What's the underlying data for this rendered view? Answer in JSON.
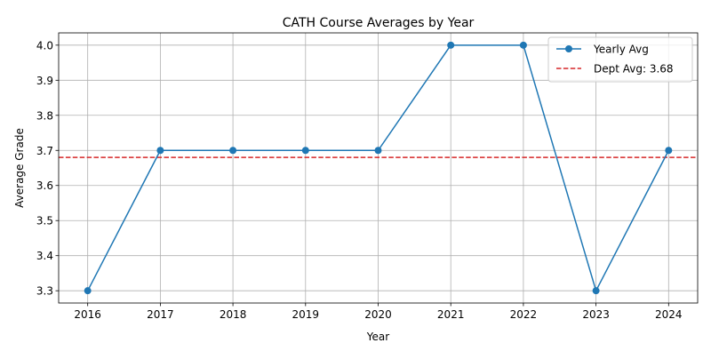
{
  "chart_data": {
    "type": "line",
    "title": "CATH Course Averages by Year",
    "xlabel": "Year",
    "ylabel": "Average Grade",
    "x": [
      2016,
      2017,
      2018,
      2019,
      2020,
      2021,
      2022,
      2023,
      2024
    ],
    "xlim": [
      2015.6,
      2024.4
    ],
    "ylim": [
      3.265,
      4.035
    ],
    "yticks": [
      3.3,
      3.4,
      3.5,
      3.6,
      3.7,
      3.8,
      3.9,
      4.0
    ],
    "ytick_labels": [
      "3.3",
      "3.4",
      "3.5",
      "3.6",
      "3.7",
      "3.8",
      "3.9",
      "4.0"
    ],
    "grid": true,
    "legend_position": "top-right",
    "series": [
      {
        "name": "Yearly Avg",
        "color": "#1f77b4",
        "marker": "circle",
        "values": [
          3.3,
          3.7,
          3.7,
          3.7,
          3.7,
          4.0,
          4.0,
          3.3,
          3.7
        ]
      }
    ],
    "reference_lines": [
      {
        "name": "Dept Avg: 3.68",
        "value": 3.68,
        "color": "#d62728",
        "style": "dashed"
      }
    ]
  }
}
